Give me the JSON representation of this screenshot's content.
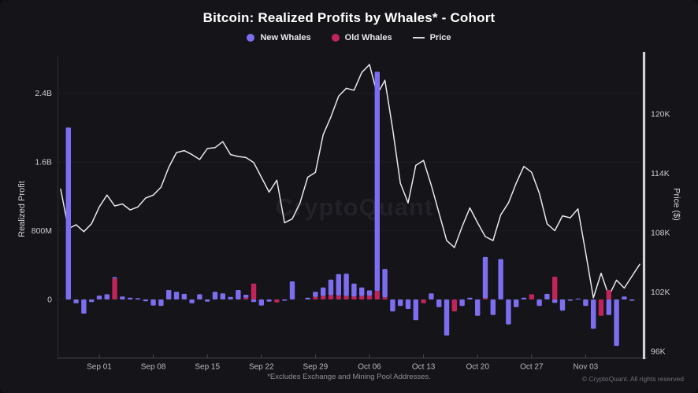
{
  "title": "Bitcoin: Realized Profits by Whales* - Cohort",
  "legend": [
    {
      "label": "New Whales",
      "color": "#7d6ef0",
      "type": "dot"
    },
    {
      "label": "Old Whales",
      "color": "#c02459",
      "type": "dot"
    },
    {
      "label": "Price",
      "color": "#d8d8dc",
      "type": "line"
    }
  ],
  "watermark": "CryptoQuant",
  "footnote": "*Excludes Exchange and Mining Pool Addresses.",
  "copyright": "© CryptoQuant. All rights reserved",
  "chart_data": {
    "type": "bar+line",
    "title": "Bitcoin: Realized Profits by Whales* - Cohort",
    "value_unit": "USD, bars in millions; price in thousands",
    "grid": "off",
    "legend_position": "top-center",
    "y_left": {
      "label": "Realized Profit",
      "ticks": [
        {
          "value": 0,
          "label": "0"
        },
        {
          "value": 800,
          "label": "800M"
        },
        {
          "value": 1600,
          "label": "1.6B"
        },
        {
          "value": 2400,
          "label": "2.4B"
        }
      ],
      "range_millions": [
        -680,
        2840
      ]
    },
    "y_right": {
      "label": "Price ($)",
      "ticks": [
        {
          "value": 120,
          "label": "120K"
        },
        {
          "value": 114,
          "label": "114K"
        },
        {
          "value": 108,
          "label": "108K"
        },
        {
          "value": 102,
          "label": "102K"
        },
        {
          "value": 96,
          "label": "96K"
        }
      ],
      "range_thousands": [
        95,
        126
      ]
    },
    "x_ticks": [
      {
        "i": 5,
        "label": "Sep 01"
      },
      {
        "i": 12,
        "label": "Sep 08"
      },
      {
        "i": 19,
        "label": "Sep 15"
      },
      {
        "i": 26,
        "label": "Sep 22"
      },
      {
        "i": 33,
        "label": "Sep 29"
      },
      {
        "i": 40,
        "label": "Oct 06"
      },
      {
        "i": 47,
        "label": "Oct 13"
      },
      {
        "i": 54,
        "label": "Oct 20"
      },
      {
        "i": 61,
        "label": "Oct 27"
      },
      {
        "i": 68,
        "label": "Nov 03"
      }
    ],
    "series": [
      {
        "name": "New Whales",
        "type": "bar",
        "color": "#7d6ef0",
        "values_millions": [
          0,
          2000,
          -45,
          -165,
          -30,
          45,
          60,
          15,
          35,
          20,
          15,
          -20,
          -70,
          -75,
          110,
          90,
          65,
          -45,
          60,
          -25,
          90,
          70,
          30,
          110,
          35,
          -30,
          -70,
          -25,
          0,
          -15,
          210,
          0,
          20,
          60,
          100,
          180,
          250,
          260,
          150,
          100,
          60,
          2550,
          330,
          -140,
          -75,
          -110,
          -240,
          0,
          70,
          -90,
          -420,
          0,
          -75,
          20,
          -190,
          480,
          -180,
          470,
          -290,
          -90,
          20,
          0,
          -75,
          65,
          -40,
          -130,
          -15,
          10,
          -75,
          -340,
          0,
          -180,
          -540,
          35,
          -15,
          0
        ]
      },
      {
        "name": "Old Whales",
        "type": "bar",
        "color": "#c02459",
        "values_millions": [
          0,
          0,
          0,
          0,
          0,
          0,
          0,
          245,
          0,
          0,
          0,
          0,
          0,
          0,
          0,
          0,
          0,
          0,
          0,
          0,
          0,
          0,
          0,
          0,
          20,
          185,
          0,
          0,
          -35,
          0,
          0,
          0,
          0,
          30,
          40,
          50,
          45,
          40,
          35,
          40,
          45,
          100,
          25,
          0,
          0,
          0,
          0,
          -45,
          0,
          0,
          0,
          -140,
          0,
          0,
          0,
          15,
          0,
          0,
          0,
          0,
          0,
          60,
          0,
          0,
          265,
          0,
          0,
          0,
          0,
          0,
          -190,
          110,
          0,
          0,
          0,
          0
        ]
      },
      {
        "name": "Price",
        "type": "line",
        "color": "#e8e8ec",
        "values_thousands": [
          112.4,
          108.4,
          108.8,
          108.1,
          108.9,
          110.6,
          111.8,
          110.7,
          110.9,
          110.3,
          110.6,
          111.5,
          111.8,
          112.6,
          114.6,
          116.1,
          116.3,
          115.9,
          115.4,
          116.5,
          116.6,
          117.2,
          115.9,
          115.7,
          115.6,
          115.1,
          113.6,
          112.1,
          113.3,
          109.0,
          109.4,
          111.0,
          113.6,
          114.1,
          117.9,
          119.7,
          121.8,
          122.6,
          122.4,
          124.2,
          125.0,
          122.0,
          123.4,
          118.5,
          113.0,
          111.0,
          114.8,
          115.3,
          112.8,
          110.0,
          107.2,
          106.5,
          108.6,
          110.5,
          109.0,
          107.6,
          107.2,
          109.8,
          111.0,
          113.0,
          114.7,
          114.1,
          112.0,
          108.9,
          108.2,
          109.7,
          109.5,
          110.4,
          106.0,
          101.4,
          103.9,
          101.6,
          103.2,
          102.4,
          103.6,
          104.8
        ]
      }
    ]
  }
}
